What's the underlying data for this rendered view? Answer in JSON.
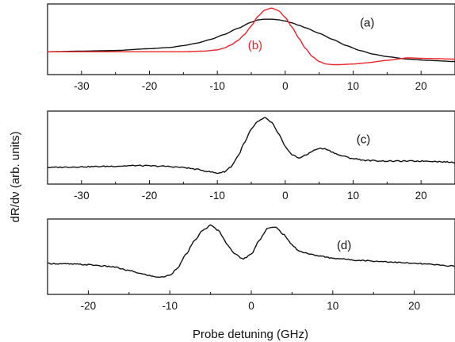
{
  "figure": {
    "ylabel": "dR/dν (arb. units)",
    "xlabel": "Probe detuning (GHz)"
  },
  "colors": {
    "black": "#111111",
    "red": "#e8242a"
  },
  "chart_data": [
    {
      "type": "line",
      "panel": "top",
      "xlim": [
        -35,
        25
      ],
      "ylim": [
        0,
        1
      ],
      "xticks": [
        -30,
        -20,
        -10,
        0,
        10,
        20
      ],
      "tick_labels": [
        "-30",
        "-20",
        "-10",
        "0",
        "10",
        "20"
      ],
      "annotations": [
        {
          "text": "(a)",
          "x": 11,
          "y": 0.69,
          "color": "#111111"
        },
        {
          "text": "(b)",
          "x": -5.5,
          "y": 0.32,
          "color": "#e8242a"
        }
      ],
      "series": [
        {
          "label": "(a)",
          "color": "#111111",
          "x": [
            -35,
            -30,
            -25,
            -20,
            -17,
            -15,
            -13,
            -11,
            -9,
            -7,
            -5,
            -4,
            -3,
            -2,
            -1,
            0,
            1,
            2,
            3,
            5,
            7,
            9,
            11,
            13,
            15,
            18,
            21,
            25
          ],
          "y": [
            0.28,
            0.29,
            0.3,
            0.33,
            0.35,
            0.38,
            0.42,
            0.48,
            0.56,
            0.66,
            0.76,
            0.8,
            0.81,
            0.81,
            0.8,
            0.78,
            0.75,
            0.71,
            0.67,
            0.58,
            0.48,
            0.38,
            0.3,
            0.24,
            0.2,
            0.16,
            0.14,
            0.12
          ]
        },
        {
          "label": "(b)",
          "color": "#e8242a",
          "x": [
            -35,
            -30,
            -25,
            -20,
            -15,
            -12,
            -10,
            -9,
            -8,
            -7,
            -6,
            -5,
            -4,
            -3,
            -2,
            -1,
            0,
            1,
            2,
            3,
            4,
            5,
            6,
            7,
            8,
            10,
            12,
            15,
            18,
            21,
            25
          ],
          "y": [
            0.28,
            0.28,
            0.28,
            0.28,
            0.28,
            0.29,
            0.31,
            0.34,
            0.39,
            0.46,
            0.56,
            0.7,
            0.86,
            0.96,
            0.99,
            0.95,
            0.84,
            0.68,
            0.5,
            0.33,
            0.2,
            0.12,
            0.08,
            0.07,
            0.07,
            0.08,
            0.1,
            0.14,
            0.18,
            0.17,
            0.16
          ]
        }
      ]
    },
    {
      "type": "line",
      "panel": "middle",
      "xlim": [
        -35,
        25
      ],
      "ylim": [
        0,
        1
      ],
      "xticks": [
        -30,
        -20,
        -10,
        0,
        10,
        20
      ],
      "tick_labels": [
        "-30",
        "-20",
        "-10",
        "0",
        "10",
        "20"
      ],
      "annotations": [
        {
          "text": "(c)",
          "x": 10.5,
          "y": 0.55,
          "color": "#111111"
        }
      ],
      "series": [
        {
          "label": "(c)",
          "color": "#111111",
          "x": [
            -35,
            -30,
            -25,
            -22,
            -18,
            -15,
            -13,
            -11,
            -10,
            -9,
            -8,
            -7,
            -6,
            -5,
            -4,
            -3,
            -2,
            -1,
            0,
            1,
            2,
            3,
            4,
            5,
            6,
            7,
            8,
            10,
            12,
            15,
            18,
            21,
            25
          ],
          "y": [
            0.17,
            0.18,
            0.19,
            0.2,
            0.19,
            0.17,
            0.14,
            0.1,
            0.08,
            0.1,
            0.18,
            0.34,
            0.56,
            0.77,
            0.9,
            0.95,
            0.88,
            0.7,
            0.5,
            0.37,
            0.32,
            0.36,
            0.43,
            0.47,
            0.46,
            0.41,
            0.36,
            0.31,
            0.28,
            0.27,
            0.27,
            0.27,
            0.25
          ]
        }
      ]
    },
    {
      "type": "line",
      "panel": "bottom",
      "xlim": [
        -25,
        25
      ],
      "ylim": [
        0,
        1
      ],
      "xticks": [
        -20,
        -10,
        0,
        10,
        20
      ],
      "tick_labels": [
        "-20",
        "-10",
        "0",
        "10",
        "20"
      ],
      "annotations": [
        {
          "text": "(d)",
          "x": 10.5,
          "y": 0.6,
          "color": "#111111"
        }
      ],
      "series": [
        {
          "label": "(d)",
          "color": "#111111",
          "x": [
            -25,
            -22,
            -20,
            -17,
            -15,
            -13,
            -12,
            -11,
            -10,
            -9,
            -8,
            -7,
            -6,
            -5,
            -4,
            -3,
            -2,
            -1,
            0,
            1,
            2,
            3,
            4,
            5,
            6,
            8,
            10,
            13,
            16,
            20,
            25
          ],
          "y": [
            0.38,
            0.37,
            0.36,
            0.33,
            0.27,
            0.21,
            0.18,
            0.17,
            0.2,
            0.32,
            0.52,
            0.72,
            0.88,
            0.96,
            0.88,
            0.68,
            0.52,
            0.45,
            0.52,
            0.74,
            0.92,
            0.93,
            0.82,
            0.66,
            0.56,
            0.5,
            0.46,
            0.43,
            0.41,
            0.38,
            0.34
          ]
        }
      ]
    }
  ]
}
